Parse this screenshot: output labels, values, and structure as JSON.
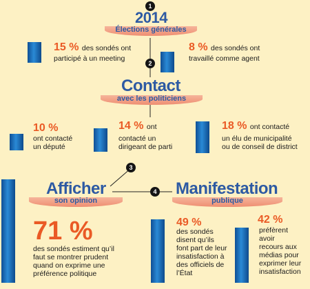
{
  "section1": {
    "badge": "1",
    "year": "2014",
    "subtitle": "Élections générales",
    "stat_a": {
      "pct": "15 %",
      "line1": "des sondés ont",
      "line2": "participé à un meeting"
    },
    "stat_b": {
      "pct": "8 %",
      "line1": "des sondés ont",
      "line2": "travaillé comme agent"
    }
  },
  "section2": {
    "badge": "2",
    "title": "Contact",
    "subtitle": "avec les politiciens",
    "stat_a": {
      "pct": "10 %",
      "line1": "ont contacté",
      "line2": "un député"
    },
    "stat_b": {
      "pct": "14 %",
      "line1": "ont",
      "line2": "contacté un",
      "line3": "dirigeant de parti"
    },
    "stat_c": {
      "pct": "18 %",
      "line1": "ont contacté",
      "line2": "un élu de municipalité",
      "line3": "ou de conseil de district"
    }
  },
  "section3": {
    "badge": "3",
    "title": "Afficher",
    "subtitle": "son opinion",
    "stat": {
      "pct": "71 %",
      "line1": "des sondés estiment qu’il",
      "line2": "faut se montrer prudent",
      "line3": "quand on exprime une",
      "line4": "préférence politique"
    }
  },
  "section4": {
    "badge": "4",
    "title": "Manifestation",
    "subtitle": "publique",
    "stat_a": {
      "pct": "49 %",
      "line1": "des sondés",
      "line2": "disent qu’ils",
      "line3": "font part de leur",
      "line4": "insatisfaction à",
      "line5": "des officiels de",
      "line6": "l’État"
    },
    "stat_b": {
      "pct": "42 %",
      "line1": "préfèrent",
      "line2": "avoir",
      "line3": "recours aux",
      "line4": "médias pour",
      "line5": "exprimer leur",
      "line6": "insatisfaction"
    }
  },
  "colors": {
    "accent": "#ea5a25",
    "title_blue": "#2d5aa3",
    "background": "#fdf1c4",
    "ribbon": "#ee8e72"
  }
}
